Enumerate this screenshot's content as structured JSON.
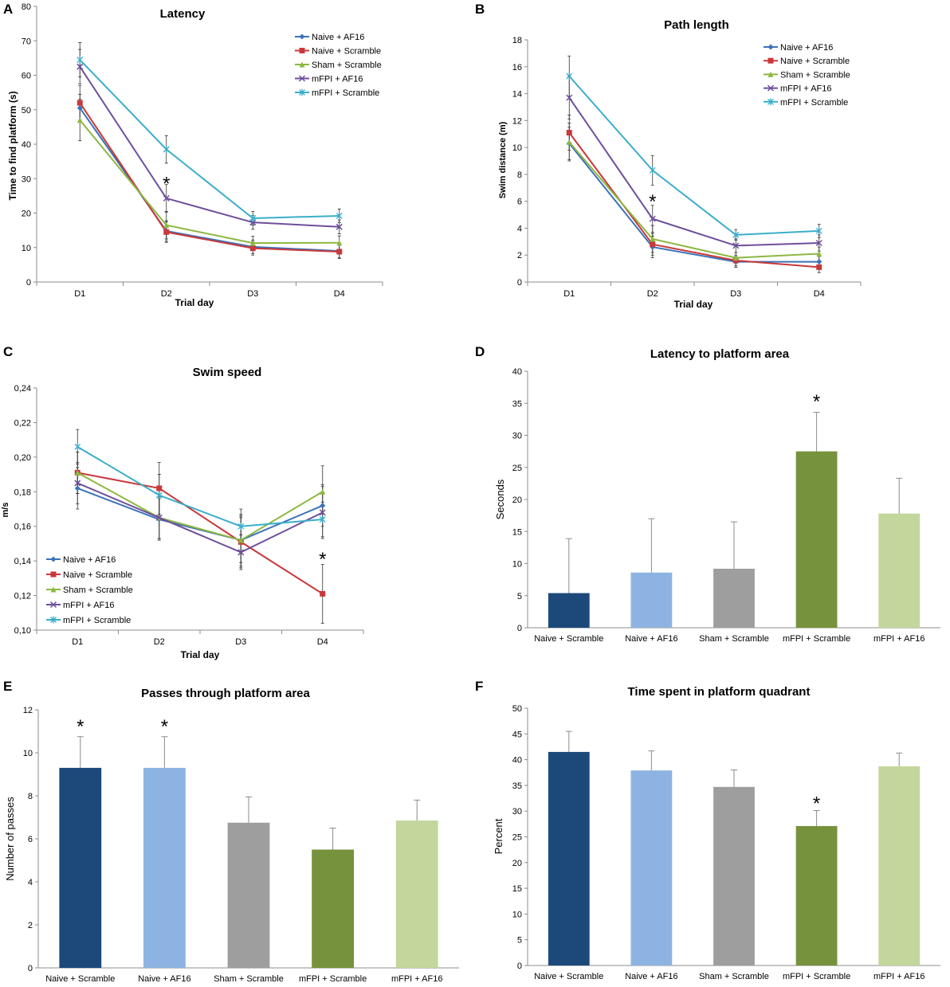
{
  "colors": {
    "naive_af16": "#3B72B8",
    "naive_scramble": "#C9383A",
    "sham_scramble": "#8CB840",
    "mfpi_af16": "#6E4F9B",
    "mfpi_scramble": "#3AAECB",
    "bar_naive_scramble": "#1C497A",
    "bar_naive_af16": "#8DB3E2",
    "bar_sham_scramble": "#9E9E9E",
    "bar_mfpi_scramble": "#76923C",
    "bar_mfpi_af16": "#C3D69B"
  },
  "chart_data": [
    {
      "id": "A",
      "type": "line",
      "title": "Latency",
      "xlabel": "Trial day",
      "ylabel": "Time to find platform (s)",
      "categories": [
        "D1",
        "D2",
        "D3",
        "D4"
      ],
      "ylim": [
        0,
        80
      ],
      "yticks": [
        "0",
        "10",
        "20",
        "30",
        "40",
        "50",
        "60",
        "70",
        "80"
      ],
      "legend_position": "top-right",
      "series": [
        {
          "name": "Naive + AF16",
          "color_key": "naive_af16",
          "marker": "diamond",
          "values": [
            50.5,
            14.8,
            10.2,
            9.0
          ],
          "errors": [
            4,
            3,
            2,
            2
          ]
        },
        {
          "name": "Naive + Scramble",
          "color_key": "naive_scramble",
          "marker": "square",
          "values": [
            52.0,
            14.5,
            9.8,
            8.8
          ],
          "errors": [
            5,
            3,
            2,
            2
          ]
        },
        {
          "name": "Sham + Scramble",
          "color_key": "sham_scramble",
          "marker": "triangle",
          "values": [
            47.0,
            16.5,
            11.3,
            11.4
          ],
          "errors": [
            6,
            4,
            2,
            2
          ]
        },
        {
          "name": "mFPI + AF16",
          "color_key": "mfpi_af16",
          "marker": "x",
          "values": [
            62.5,
            24.3,
            17.3,
            16.0
          ],
          "errors": [
            5,
            4,
            2,
            2
          ]
        },
        {
          "name": "mFPI + Scramble",
          "color_key": "mfpi_scramble",
          "marker": "star",
          "values": [
            64.5,
            38.5,
            18.5,
            19.2
          ],
          "errors": [
            5,
            4,
            2,
            2
          ]
        }
      ],
      "annotations": [
        {
          "label": "*",
          "category": "D2",
          "y": 29
        }
      ]
    },
    {
      "id": "B",
      "type": "line",
      "title": "Path length",
      "xlabel": "Trial day",
      "ylabel": "Swim distance (m)",
      "categories": [
        "D1",
        "D2",
        "D3",
        "D4"
      ],
      "ylim": [
        0,
        18
      ],
      "yticks": [
        "0",
        "2",
        "4",
        "6",
        "8",
        "10",
        "12",
        "14",
        "16",
        "18"
      ],
      "legend_position": "top-right",
      "series": [
        {
          "name": "Naive + AF16",
          "color_key": "naive_af16",
          "marker": "diamond",
          "values": [
            10.3,
            2.6,
            1.5,
            1.5
          ],
          "errors": [
            1.2,
            0.8,
            0.4,
            0.4
          ]
        },
        {
          "name": "Naive + Scramble",
          "color_key": "naive_scramble",
          "marker": "square",
          "values": [
            11.1,
            2.8,
            1.6,
            1.1
          ],
          "errors": [
            1.3,
            0.8,
            0.4,
            0.4
          ]
        },
        {
          "name": "Sham + Scramble",
          "color_key": "sham_scramble",
          "marker": "triangle",
          "values": [
            10.4,
            3.2,
            1.8,
            2.1
          ],
          "errors": [
            1.4,
            1.0,
            0.4,
            0.5
          ]
        },
        {
          "name": "mFPI + AF16",
          "color_key": "mfpi_af16",
          "marker": "x",
          "values": [
            13.7,
            4.7,
            2.7,
            2.9
          ],
          "errors": [
            1.6,
            1.0,
            0.5,
            0.6
          ]
        },
        {
          "name": "mFPI + Scramble",
          "color_key": "mfpi_scramble",
          "marker": "star",
          "values": [
            15.3,
            8.3,
            3.5,
            3.8
          ],
          "errors": [
            1.5,
            1.1,
            0.4,
            0.5
          ]
        }
      ],
      "annotations": [
        {
          "label": "*",
          "category": "D2",
          "y": 6.1
        }
      ]
    },
    {
      "id": "C",
      "type": "line",
      "title": "Swim speed",
      "xlabel": "Trial day",
      "ylabel": "m/s",
      "categories": [
        "D1",
        "D2",
        "D3",
        "D4"
      ],
      "ylim": [
        0.1,
        0.24
      ],
      "yticks": [
        "0,10",
        "0,12",
        "0,14",
        "0,16",
        "0,18",
        "0,20",
        "0,22",
        "0,24"
      ],
      "legend_position": "bottom-left",
      "series": [
        {
          "name": "Naive + AF16",
          "color_key": "naive_af16",
          "marker": "diamond",
          "values": [
            0.182,
            0.164,
            0.152,
            0.172
          ],
          "errors": [
            0.012,
            0.012,
            0.015,
            0.012
          ]
        },
        {
          "name": "Naive + Scramble",
          "color_key": "naive_scramble",
          "marker": "square",
          "values": [
            0.191,
            0.182,
            0.151,
            0.121
          ],
          "errors": [
            0.012,
            0.015,
            0.015,
            0.017
          ]
        },
        {
          "name": "Sham + Scramble",
          "color_key": "sham_scramble",
          "marker": "triangle",
          "values": [
            0.191,
            0.165,
            0.152,
            0.18
          ],
          "errors": [
            0.012,
            0.012,
            0.013,
            0.015
          ]
        },
        {
          "name": "mFPI + AF16",
          "color_key": "mfpi_af16",
          "marker": "x",
          "values": [
            0.185,
            0.165,
            0.145,
            0.168
          ],
          "errors": [
            0.012,
            0.012,
            0.01,
            0.015
          ]
        },
        {
          "name": "mFPI + Scramble",
          "color_key": "mfpi_scramble",
          "marker": "star",
          "values": [
            0.206,
            0.178,
            0.16,
            0.164
          ],
          "errors": [
            0.01,
            0.012,
            0.01,
            0.01
          ]
        }
      ],
      "annotations": [
        {
          "label": "*",
          "category": "D4",
          "y": 0.142
        }
      ]
    },
    {
      "id": "D",
      "type": "bar",
      "title": "Latency to platform area",
      "xlabel": "",
      "ylabel": "Seconds",
      "categories": [
        "Naive + Scramble",
        "Naive + AF16",
        "Sham + Scramble",
        "mFPI + Scramble",
        "mFPI + AF16"
      ],
      "color_keys": [
        "bar_naive_scramble",
        "bar_naive_af16",
        "bar_sham_scramble",
        "bar_mfpi_scramble",
        "bar_mfpi_af16"
      ],
      "values": [
        5.4,
        8.6,
        9.2,
        27.5,
        17.8
      ],
      "errors": [
        8.5,
        8.4,
        7.3,
        6.1,
        5.5
      ],
      "ylim": [
        0,
        40
      ],
      "yticks": [
        "0",
        "5",
        "10",
        "15",
        "20",
        "25",
        "30",
        "35",
        "40"
      ],
      "annotations": [
        {
          "label": "*",
          "category_index": 3,
          "y": 35.5
        }
      ]
    },
    {
      "id": "E",
      "type": "bar",
      "title": "Passes through platform area",
      "xlabel": "",
      "ylabel": "Number of passes",
      "categories": [
        "Naive + Scramble",
        "Naive + AF16",
        "Sham + Scramble",
        "mFPI + Scramble",
        "mFPI + AF16"
      ],
      "color_keys": [
        "bar_naive_scramble",
        "bar_naive_af16",
        "bar_sham_scramble",
        "bar_mfpi_scramble",
        "bar_mfpi_af16"
      ],
      "values": [
        9.3,
        9.3,
        6.75,
        5.5,
        6.85
      ],
      "errors": [
        1.45,
        1.45,
        1.2,
        1.0,
        0.95
      ],
      "ylim": [
        0,
        12
      ],
      "yticks": [
        "0",
        "2",
        "4",
        "6",
        "8",
        "10",
        "12"
      ],
      "annotations": [
        {
          "label": "*",
          "category_index": 0,
          "y": 11.3
        },
        {
          "label": "*",
          "category_index": 1,
          "y": 11.3
        }
      ]
    },
    {
      "id": "F",
      "type": "bar",
      "title": "Time spent in platform quadrant",
      "xlabel": "",
      "ylabel": "Percent",
      "categories": [
        "Naive + Scramble",
        "Naive + AF16",
        "Sham + Scramble",
        "mFPI + Scramble",
        "mFPI + AF16"
      ],
      "color_keys": [
        "bar_naive_scramble",
        "bar_naive_af16",
        "bar_sham_scramble",
        "bar_mfpi_scramble",
        "bar_mfpi_af16"
      ],
      "values": [
        41.5,
        37.9,
        34.7,
        27.1,
        38.7
      ],
      "errors": [
        4.0,
        3.8,
        3.3,
        3.0,
        2.6
      ],
      "ylim": [
        0,
        50
      ],
      "yticks": [
        "0",
        "5",
        "10",
        "15",
        "20",
        "25",
        "30",
        "35",
        "40",
        "45",
        "50"
      ],
      "annotations": [
        {
          "label": "*",
          "category_index": 3,
          "y": 31.8
        }
      ]
    }
  ]
}
